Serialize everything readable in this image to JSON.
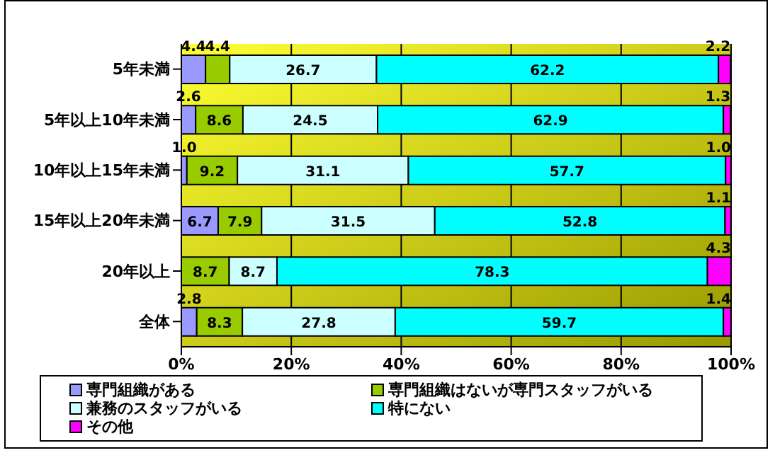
{
  "chart_data": {
    "type": "bar",
    "orientation": "horizontal",
    "stacked": true,
    "categories": [
      "5年未満",
      "5年以上10年未満",
      "10年以上15年未満",
      "15年以上20年未満",
      "20年以上",
      "全体"
    ],
    "series": [
      {
        "name": "専門組織がある",
        "color": "#9999ff",
        "values": [
          4.4,
          2.6,
          1.0,
          6.7,
          0,
          2.8
        ],
        "value_labels": [
          "4.4",
          "2.6",
          "1.0",
          "6.7",
          null,
          "2.8"
        ]
      },
      {
        "name": "専門組織はないが専門スタッフがいる",
        "color": "#99cc00",
        "values": [
          4.4,
          8.6,
          9.2,
          7.9,
          8.7,
          8.3
        ],
        "value_labels": [
          "4.4",
          "8.6",
          "9.2",
          "7.9",
          "8.7",
          "8.3"
        ]
      },
      {
        "name": "兼務のスタッフがいる",
        "color": "#ccffff",
        "values": [
          26.7,
          24.5,
          31.1,
          31.5,
          8.7,
          27.8
        ],
        "value_labels": [
          "26.7",
          "24.5",
          "31.1",
          "31.5",
          "8.7",
          "27.8"
        ]
      },
      {
        "name": "特にない",
        "color": "#00ffff",
        "values": [
          62.2,
          62.9,
          57.7,
          52.8,
          78.3,
          59.7
        ],
        "value_labels": [
          "62.2",
          "62.9",
          "57.7",
          "52.8",
          "78.3",
          "59.7"
        ]
      },
      {
        "name": "その他",
        "color": "#ff00ff",
        "values": [
          2.2,
          1.3,
          1.0,
          1.1,
          4.3,
          1.4
        ],
        "value_labels": [
          "2.2",
          "1.3",
          "1.0",
          "1.1",
          "4.3",
          "1.4"
        ]
      }
    ],
    "xlim": [
      0,
      100
    ],
    "xticks": [
      {
        "value": 0,
        "label": "0%"
      },
      {
        "value": 20,
        "label": "20%"
      },
      {
        "value": 40,
        "label": "40%"
      },
      {
        "value": 60,
        "label": "60%"
      },
      {
        "value": 80,
        "label": "80%"
      },
      {
        "value": 100,
        "label": "100%"
      }
    ],
    "grid": "x",
    "legend": "bottom"
  }
}
